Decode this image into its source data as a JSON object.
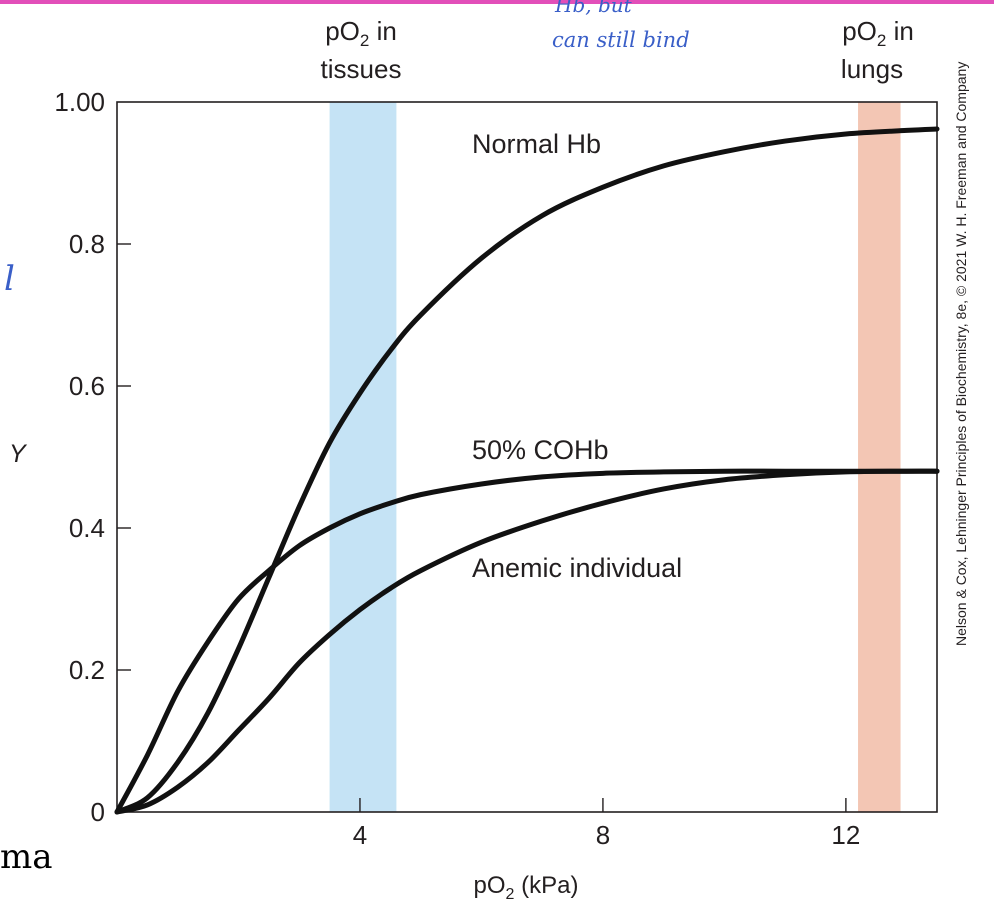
{
  "page": {
    "accent_color": "#e24fb9",
    "handwritten_note": [
      "Hb, but",
      "can still bind"
    ],
    "handwritten_mark": "l",
    "cropped_text": "ma",
    "credit": "Nelson & Cox, Lehninger Principles of Biochemistry, 8e, © 2021 W. H. Freeman and Company"
  },
  "chart_data": {
    "type": "line",
    "xlabel": "pO2 (kPa)",
    "ylabel": "Y",
    "xlim": [
      0,
      13.5
    ],
    "ylim": [
      0,
      1.0
    ],
    "x_ticks": [
      4,
      8,
      12
    ],
    "x_tick_labels": [
      "4",
      "8",
      "12"
    ],
    "y_ticks": [
      0,
      0.2,
      0.4,
      0.6,
      0.8,
      1.0
    ],
    "y_tick_labels": [
      "0",
      "0.2",
      "0.4",
      "0.6",
      "0.8",
      "1.00"
    ],
    "grid": false,
    "bands": [
      {
        "label": "pO2 in tissues",
        "x_range": [
          3.5,
          4.6
        ],
        "color": "#c5e3f5"
      },
      {
        "label": "pO2 in lungs",
        "x_range": [
          12.2,
          12.9
        ],
        "color": "#f3c6b4"
      }
    ],
    "series": [
      {
        "name": "Normal Hb",
        "x": [
          0,
          0.5,
          1,
          1.5,
          2,
          2.5,
          3,
          3.5,
          4,
          4.5,
          5,
          6,
          7,
          8,
          9,
          10,
          11,
          12,
          13,
          13.5
        ],
        "y": [
          0,
          0.02,
          0.07,
          0.14,
          0.23,
          0.33,
          0.43,
          0.52,
          0.59,
          0.65,
          0.7,
          0.78,
          0.84,
          0.88,
          0.91,
          0.93,
          0.945,
          0.955,
          0.96,
          0.962
        ]
      },
      {
        "name": "50% COHb",
        "x": [
          0,
          0.5,
          1,
          1.5,
          2,
          2.5,
          3,
          3.5,
          4,
          4.5,
          5,
          6,
          7,
          8,
          9,
          10,
          11,
          12,
          13,
          13.5
        ],
        "y": [
          0,
          0.08,
          0.17,
          0.24,
          0.3,
          0.34,
          0.375,
          0.4,
          0.42,
          0.435,
          0.447,
          0.462,
          0.472,
          0.477,
          0.479,
          0.48,
          0.48,
          0.48,
          0.48,
          0.48
        ]
      },
      {
        "name": "Anemic individual",
        "x": [
          0,
          0.5,
          1,
          1.5,
          2,
          2.5,
          3,
          3.5,
          4,
          4.5,
          5,
          6,
          7,
          8,
          9,
          10,
          11,
          12,
          13,
          13.5
        ],
        "y": [
          0,
          0.01,
          0.035,
          0.07,
          0.115,
          0.16,
          0.21,
          0.25,
          0.285,
          0.315,
          0.34,
          0.38,
          0.41,
          0.435,
          0.455,
          0.468,
          0.475,
          0.479,
          0.48,
          0.48
        ]
      }
    ]
  }
}
